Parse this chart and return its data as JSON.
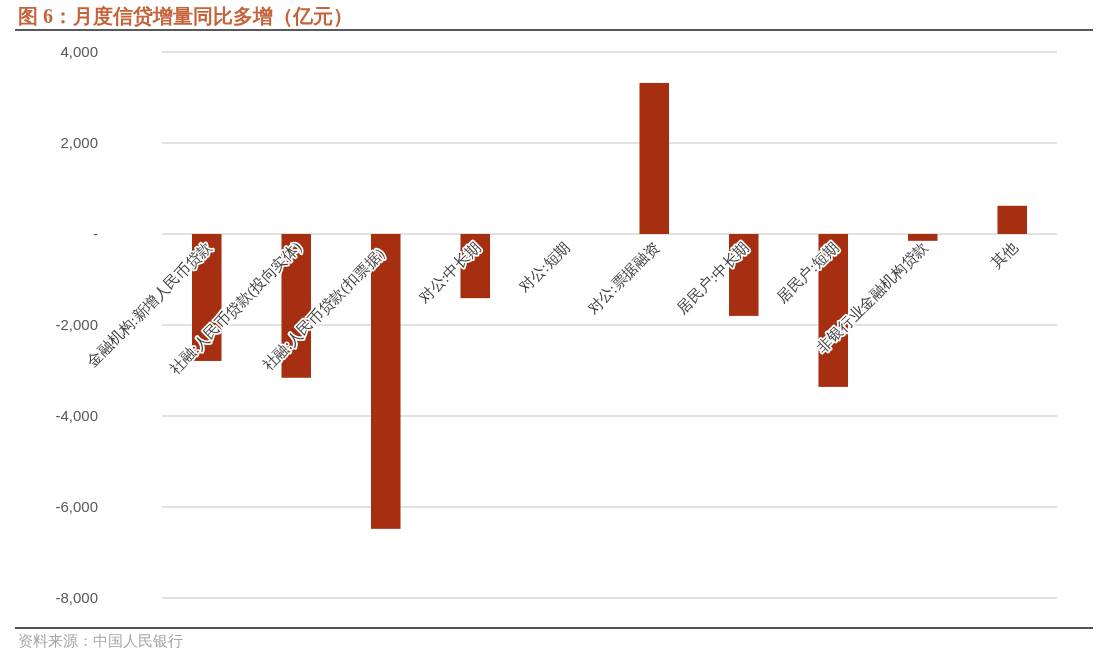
{
  "chart_data": {
    "type": "bar",
    "title": "图 6：月度信贷增量同比多增（亿元）",
    "categories": [
      "金融机构:新增人民币贷款",
      "社融:人民币贷款(投向实体)",
      "社融:人民币贷款(扣票据）",
      "对公:中长期",
      "对公:短期",
      "对公:票据融资",
      "居民户:中长期",
      "居民户:短期",
      "非银行业金融机构贷款",
      "其他"
    ],
    "values": [
      -2790,
      -3160,
      -6480,
      -1410,
      0,
      3320,
      -1800,
      -3360,
      -150,
      620
    ],
    "color": "#a52f10",
    "ylim": [
      -8000,
      4000
    ],
    "yticks": [
      {
        "value": -8000,
        "label": "-8,000"
      },
      {
        "value": -6000,
        "label": "-6,000"
      },
      {
        "value": -4000,
        "label": "-4,000"
      },
      {
        "value": -2000,
        "label": "-2,000"
      },
      {
        "value": 0,
        "label": "-"
      },
      {
        "value": 2000,
        "label": "2,000"
      },
      {
        "value": 4000,
        "label": "4,000"
      }
    ],
    "grid": "y",
    "annotations": [
      "资料来源：中国人民银行"
    ]
  }
}
